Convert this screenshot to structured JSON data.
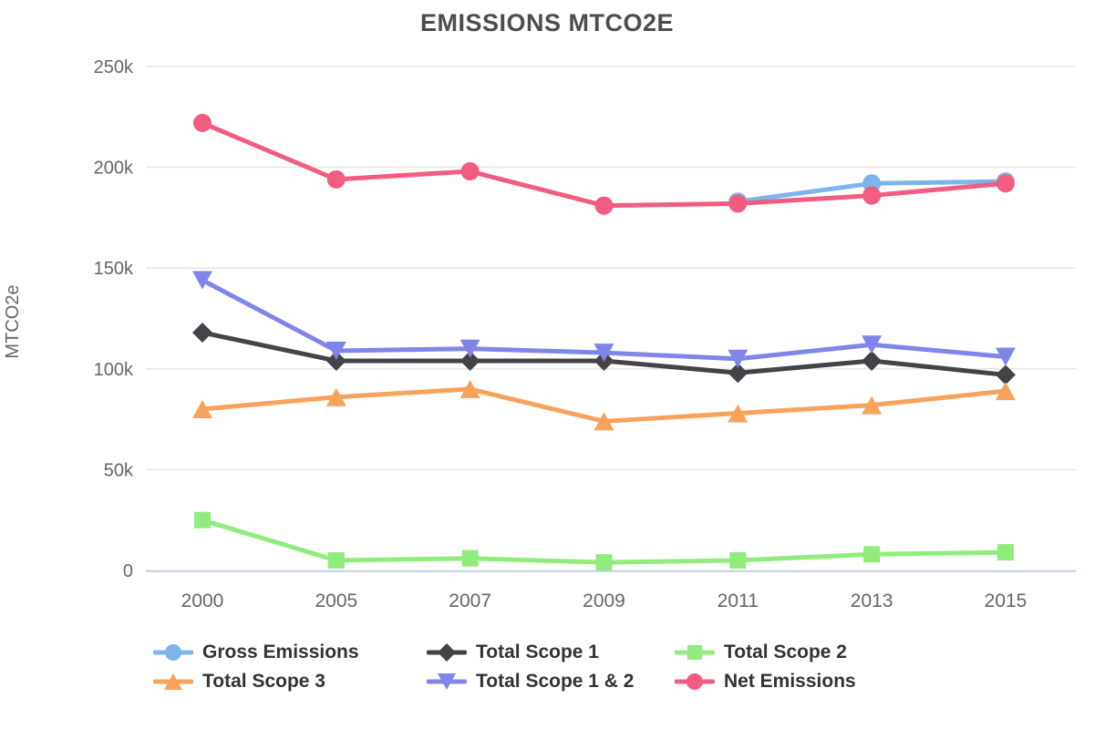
{
  "chart_data": {
    "type": "line",
    "title": "EMISSIONS MTCO2E",
    "ylabel": "MTCO2e",
    "xlabel": "",
    "categories": [
      "2000",
      "2005",
      "2007",
      "2009",
      "2011",
      "2013",
      "2015"
    ],
    "ylim": [
      0,
      250000
    ],
    "ytick_step": 50000,
    "ytick_labels": [
      "0",
      "50k",
      "100k",
      "150k",
      "200k",
      "250k"
    ],
    "grid": true,
    "legend_position": "bottom",
    "colors": {
      "grid_line": "#e6e6e6",
      "axis_line": "#ccd6eb",
      "tick_label": "#666666",
      "title": "#4d4d4d",
      "legend_text": "#333333"
    },
    "series": [
      {
        "name": "Gross Emissions",
        "color": "#7cb5ec",
        "marker": "circle",
        "values": [
          null,
          null,
          null,
          null,
          183000,
          192000,
          193000
        ]
      },
      {
        "name": "Total Scope 1",
        "color": "#434348",
        "marker": "diamond",
        "values": [
          118000,
          104000,
          104000,
          104000,
          98000,
          104000,
          97000
        ]
      },
      {
        "name": "Total Scope 2",
        "color": "#90ed7d",
        "marker": "square",
        "values": [
          25000,
          5000,
          6000,
          4000,
          5000,
          8000,
          9000
        ]
      },
      {
        "name": "Total Scope 3",
        "color": "#f7a35c",
        "marker": "triangle",
        "values": [
          80000,
          86000,
          90000,
          74000,
          78000,
          82000,
          89000
        ]
      },
      {
        "name": "Total Scope 1 & 2",
        "color": "#8085e9",
        "marker": "triangle-down",
        "values": [
          144000,
          109000,
          110000,
          108000,
          105000,
          112000,
          106000
        ]
      },
      {
        "name": "Net Emissions",
        "color": "#f15c80",
        "marker": "circle",
        "values": [
          222000,
          194000,
          198000,
          181000,
          182000,
          186000,
          192000
        ]
      }
    ],
    "legend_order": [
      "Gross Emissions",
      "Total Scope 1",
      "Total Scope 2",
      "Total Scope 3",
      "Total Scope 1 & 2",
      "Net Emissions"
    ]
  }
}
